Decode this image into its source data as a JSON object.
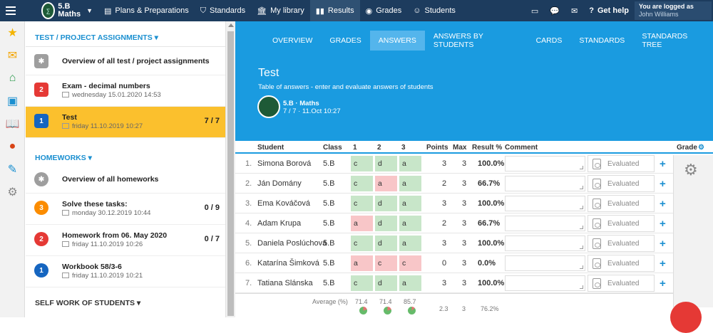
{
  "topbar": {
    "menu_icon": "hamburger-icon",
    "class_name": "5.B",
    "class_subject": "Maths",
    "nav": [
      {
        "label": "Plans & Preparations",
        "icon": "plans-icon"
      },
      {
        "label": "Standards",
        "icon": "shield-icon"
      },
      {
        "label": "My library",
        "icon": "library-icon"
      },
      {
        "label": "Results",
        "icon": "results-icon"
      },
      {
        "label": "Grades",
        "icon": "grades-icon"
      },
      {
        "label": "Students",
        "icon": "students-icon"
      }
    ],
    "help_label": "Get help",
    "logged_label": "You are logged as",
    "user_name": "John Williams"
  },
  "rail_icons": [
    "star-icon",
    "envelope-icon",
    "home-icon",
    "book-icon",
    "open-book-icon",
    "chat-icon",
    "pen-icon",
    "gear-icon"
  ],
  "sidebar": {
    "section1": "TEST / PROJECT ASSIGNMENTS",
    "overview1": "Overview of all test / project assignments",
    "assignments": [
      {
        "badge": "2",
        "title": "Exam - decimal numbers",
        "date": "wednesday 15.01.2020 14:53",
        "count": "",
        "color": "#e53935"
      },
      {
        "badge": "1",
        "title": "Test",
        "date": "friday 11.10.2019 10:27",
        "count": "7 / 7",
        "color": "#1565c0"
      }
    ],
    "section2": "HOMEWORKS",
    "overview2": "Overview of all homeworks",
    "homeworks": [
      {
        "badge": "3",
        "title": "Solve these tasks:",
        "date": "monday 30.12.2019 10:44",
        "count": "0 / 9",
        "color": "#fb8c00"
      },
      {
        "badge": "2",
        "title": "Homework from 06. May 2020",
        "date": "friday 11.10.2019 10:26",
        "count": "0 / 7",
        "color": "#e53935"
      },
      {
        "badge": "1",
        "title": "Workbook 58/3-6",
        "date": "friday 11.10.2019 10:21",
        "count": "",
        "color": "#1565c0"
      }
    ],
    "section3": "SELF WORK OF STUDENTS"
  },
  "subnav": [
    "OVERVIEW",
    "GRADES",
    "ANSWERS",
    "ANSWERS BY STUDENTS",
    "CARDS",
    "STANDARDS",
    "STANDARDS TREE"
  ],
  "hero": {
    "title": "Test",
    "subtitle": "Table of answers - enter and evaluate answers of students",
    "class_line": "5.B · Maths",
    "meta_line": "7 / 7 · 11.Oct 10:27"
  },
  "table": {
    "headers": {
      "student": "Student",
      "class": "Class",
      "q1": "1",
      "q2": "2",
      "q3": "3",
      "points": "Points",
      "max": "Max",
      "result": "Result %",
      "comment": "Comment",
      "grade": "Grade"
    },
    "rows": [
      {
        "n": "1.",
        "name": "Simona Borová",
        "class": "5.B",
        "a": [
          "c",
          "d",
          "a"
        ],
        "ok": [
          true,
          true,
          true
        ],
        "points": "3",
        "max": "3",
        "result": "100.0%",
        "status": "Evaluated"
      },
      {
        "n": "2.",
        "name": "Ján Domány",
        "class": "5.B",
        "a": [
          "c",
          "a",
          "a"
        ],
        "ok": [
          true,
          false,
          true
        ],
        "points": "2",
        "max": "3",
        "result": "66.7%",
        "status": "Evaluated"
      },
      {
        "n": "3.",
        "name": "Ema Kováčová",
        "class": "5.B",
        "a": [
          "c",
          "d",
          "a"
        ],
        "ok": [
          true,
          true,
          true
        ],
        "points": "3",
        "max": "3",
        "result": "100.0%",
        "status": "Evaluated"
      },
      {
        "n": "4.",
        "name": "Adam Krupa",
        "class": "5.B",
        "a": [
          "a",
          "d",
          "a"
        ],
        "ok": [
          false,
          true,
          true
        ],
        "points": "2",
        "max": "3",
        "result": "66.7%",
        "status": "Evaluated"
      },
      {
        "n": "5.",
        "name": "Daniela Poslúchová",
        "class": "5.B",
        "a": [
          "c",
          "d",
          "a"
        ],
        "ok": [
          true,
          true,
          true
        ],
        "points": "3",
        "max": "3",
        "result": "100.0%",
        "status": "Evaluated"
      },
      {
        "n": "6.",
        "name": "Katarína Šimková",
        "class": "5.B",
        "a": [
          "a",
          "c",
          "c"
        ],
        "ok": [
          false,
          false,
          false
        ],
        "points": "0",
        "max": "3",
        "result": "0.0%",
        "status": "Evaluated"
      },
      {
        "n": "7.",
        "name": "Tatiana Slánska",
        "class": "5.B",
        "a": [
          "c",
          "d",
          "a"
        ],
        "ok": [
          true,
          true,
          true
        ],
        "points": "3",
        "max": "3",
        "result": "100.0%",
        "status": "Evaluated"
      }
    ],
    "average": {
      "label": "Average (%)",
      "q1": "71.4",
      "q2": "71.4",
      "q3": "85.7",
      "points": "2.3",
      "max": "3",
      "result": "76.2%"
    }
  },
  "colors": {
    "topbar": "#1d3c5e",
    "accent": "#1a9be0",
    "selected": "#fbc02d",
    "correct": "#c8e6c9",
    "wrong": "#f8c6c8"
  }
}
